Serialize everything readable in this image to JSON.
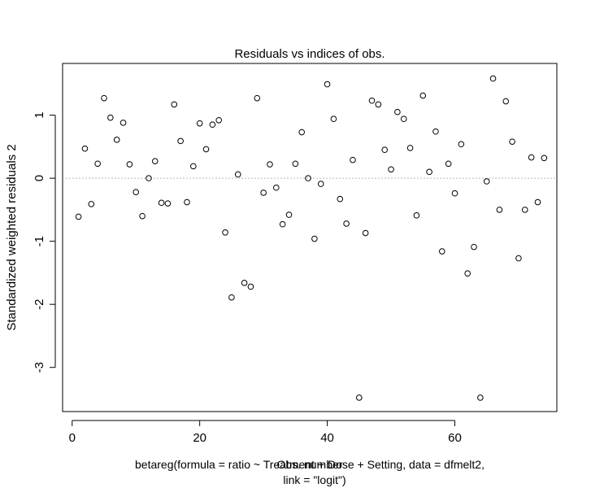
{
  "chart_data": {
    "type": "scatter",
    "title": "Residuals vs indices of obs.",
    "ylabel": "Standardized weighted residuals 2",
    "xlabel": "Obs. number",
    "caption_line1": "betareg(formula = ratio ~ Treatment + Dose + Setting, data = dfmelt2,",
    "caption_line2": "link = \"logit\")",
    "xlim": [
      -1.5,
      76
    ],
    "ylim": [
      -3.7,
      1.82
    ],
    "x_ticks": [
      0,
      20,
      40,
      60
    ],
    "y_ticks": [
      -3,
      -2,
      -1,
      0,
      1
    ],
    "x_tick_labels": [
      "0",
      "20",
      "40",
      "60"
    ],
    "y_tick_labels": [
      "-3",
      "-2",
      "-1",
      "0",
      "1"
    ],
    "reference_line": 0,
    "grid": false,
    "x": [
      1,
      2,
      3,
      4,
      5,
      6,
      7,
      8,
      9,
      10,
      11,
      12,
      13,
      14,
      15,
      16,
      17,
      18,
      19,
      20,
      21,
      22,
      23,
      24,
      25,
      26,
      27,
      28,
      29,
      30,
      31,
      32,
      33,
      34,
      35,
      36,
      37,
      38,
      39,
      40,
      41,
      42,
      43,
      44,
      45,
      46,
      47,
      48,
      49,
      50,
      51,
      52,
      53,
      54,
      55,
      56,
      57,
      58,
      59,
      60,
      61,
      62,
      63,
      64,
      65,
      66,
      67,
      68,
      69,
      70,
      71,
      72,
      73,
      74
    ],
    "y": [
      -0.61,
      0.47,
      -0.41,
      0.23,
      1.27,
      0.96,
      0.61,
      0.88,
      0.22,
      -0.22,
      -0.6,
      0.0,
      0.27,
      -0.39,
      -0.4,
      1.17,
      0.59,
      -0.38,
      0.19,
      0.87,
      0.46,
      0.85,
      0.92,
      -0.86,
      -1.89,
      0.06,
      -1.66,
      -1.72,
      1.27,
      -0.23,
      0.22,
      -0.15,
      -0.73,
      -0.58,
      0.23,
      0.73,
      0.0,
      -0.96,
      -0.09,
      1.49,
      0.94,
      -0.33,
      -0.72,
      0.29,
      -3.48,
      -0.87,
      1.23,
      1.17,
      0.45,
      0.14,
      1.05,
      0.94,
      0.48,
      -0.59,
      1.31,
      0.1,
      0.74,
      -1.16,
      0.23,
      -0.24,
      0.54,
      -1.51,
      -1.09,
      -3.48,
      -0.05,
      1.58,
      -0.5,
      1.22,
      0.58,
      -1.27,
      -0.5,
      0.33,
      -0.38,
      0.32
    ]
  }
}
